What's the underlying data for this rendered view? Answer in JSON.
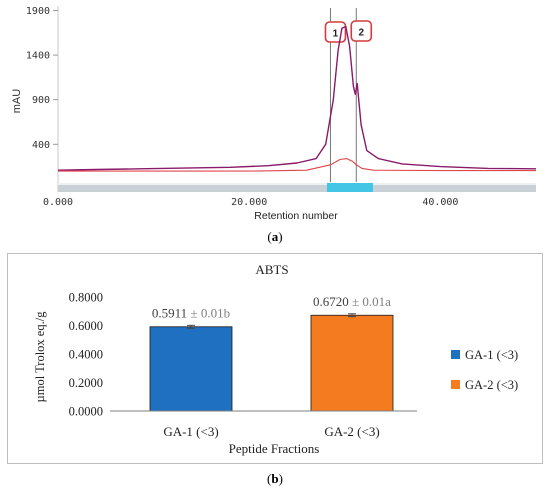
{
  "panel_a": {
    "caption": "(a)",
    "caption_letter": "a",
    "chart_data": {
      "type": "line",
      "ylabel": "mAU",
      "xlabel": "Retention number",
      "xlim": [
        0,
        50000
      ],
      "ylim": [
        0,
        1950
      ],
      "x_tick_labels": [
        "0.000",
        "20.000",
        "40.000"
      ],
      "x_tick_values": [
        0,
        20000,
        40000
      ],
      "y_tick_labels": [
        "400",
        "900",
        "1400",
        "1900"
      ],
      "y_tick_values": [
        400,
        900,
        1400,
        1900
      ],
      "series": [
        {
          "color": "#8a1a6a",
          "x": [
            0,
            4000,
            10000,
            18000,
            22000,
            25000,
            27000,
            28000,
            28800,
            29300,
            29700,
            30100,
            30500,
            30900,
            31100,
            31300,
            31700,
            32300,
            33500,
            36000,
            40000,
            45000,
            50000
          ],
          "values": [
            110,
            118,
            128,
            142,
            160,
            190,
            240,
            400,
            900,
            1450,
            1700,
            1720,
            1500,
            1050,
            960,
            1080,
            620,
            330,
            240,
            180,
            150,
            130,
            125
          ]
        },
        {
          "color": "#e0454a",
          "x": [
            0,
            4000,
            10000,
            20000,
            26000,
            28500,
            29500,
            30200,
            30800,
            31200,
            31800,
            33000,
            40000,
            50000
          ],
          "values": [
            100,
            100,
            100,
            100,
            110,
            170,
            230,
            240,
            210,
            170,
            130,
            110,
            105,
            105
          ]
        }
      ],
      "peaks": [
        {
          "label": "1",
          "x": 28500
        },
        {
          "label": "2",
          "x": 31200
        }
      ]
    }
  },
  "panel_b": {
    "caption": "(b)",
    "caption_letter": "b",
    "chart_data": {
      "type": "bar",
      "title": "ABTS",
      "xlabel": "Peptide Fractions",
      "ylabel": "µmol Trolox eq./g",
      "categories": [
        "GA-1 (<3)",
        "GA-2 (<3)"
      ],
      "values": [
        0.5911,
        0.672
      ],
      "errors": [
        0.01,
        0.01
      ],
      "data_labels": [
        {
          "value": "0.5911",
          "annotation": "± 0.01b"
        },
        {
          "value": "0.6720",
          "annotation": "± 0.01a"
        }
      ],
      "colors": [
        "#1f70c1",
        "#f47b20"
      ],
      "ylim": [
        0,
        0.8
      ],
      "y_tick_labels": [
        "0.0000",
        "0.2000",
        "0.4000",
        "0.6000",
        "0.8000"
      ],
      "y_tick_values": [
        0,
        0.2,
        0.4,
        0.6,
        0.8
      ],
      "legend": [
        "GA-1 (<3)",
        "GA-2 (<3)"
      ],
      "legend_position": "right",
      "grid": false
    }
  }
}
